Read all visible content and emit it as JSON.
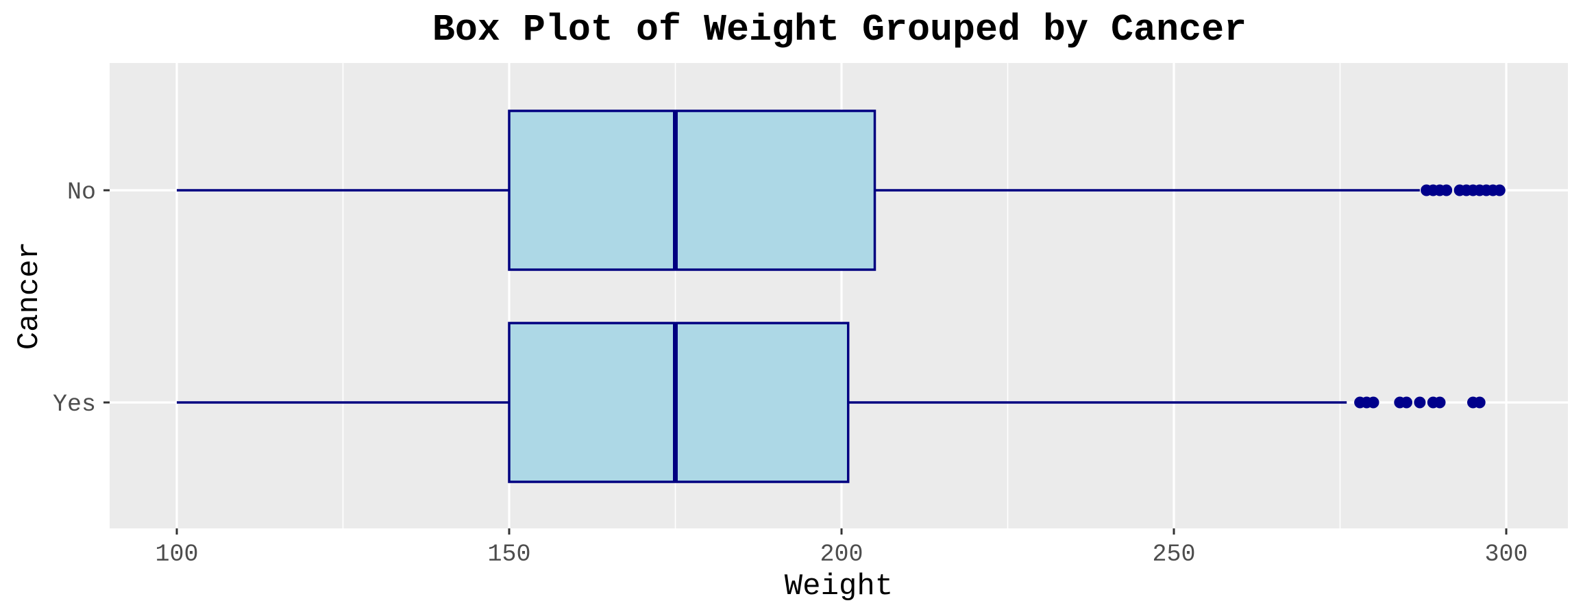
{
  "chart_data": {
    "type": "boxplot",
    "orientation": "horizontal",
    "title": "Box Plot of Weight Grouped by Cancer",
    "xlabel": "Weight",
    "ylabel": "Cancer",
    "xlim": [
      90,
      310
    ],
    "x_ticks": [
      100,
      150,
      200,
      250,
      300
    ],
    "categories": [
      "No",
      "Yes"
    ],
    "grid": true,
    "legend": "none",
    "colors": {
      "panel_background": "#EBEBEB",
      "grid_line": "#FFFFFF",
      "box_fill": "#ADD8E6",
      "box_outline": "#000080",
      "outlier": "#00008B",
      "tick_label": "#4D4D4D"
    },
    "series": [
      {
        "category": "No",
        "whisker_low": 100,
        "q1": 150,
        "median": 175,
        "q3": 205,
        "whisker_high": 287,
        "outliers": [
          288,
          289,
          290,
          291,
          293,
          294,
          295,
          296,
          297,
          298,
          299
        ]
      },
      {
        "category": "Yes",
        "whisker_low": 100,
        "q1": 150,
        "median": 175,
        "q3": 201,
        "whisker_high": 276,
        "outliers": [
          278,
          279,
          280,
          284,
          285,
          287,
          289,
          290,
          295,
          296
        ]
      }
    ]
  }
}
